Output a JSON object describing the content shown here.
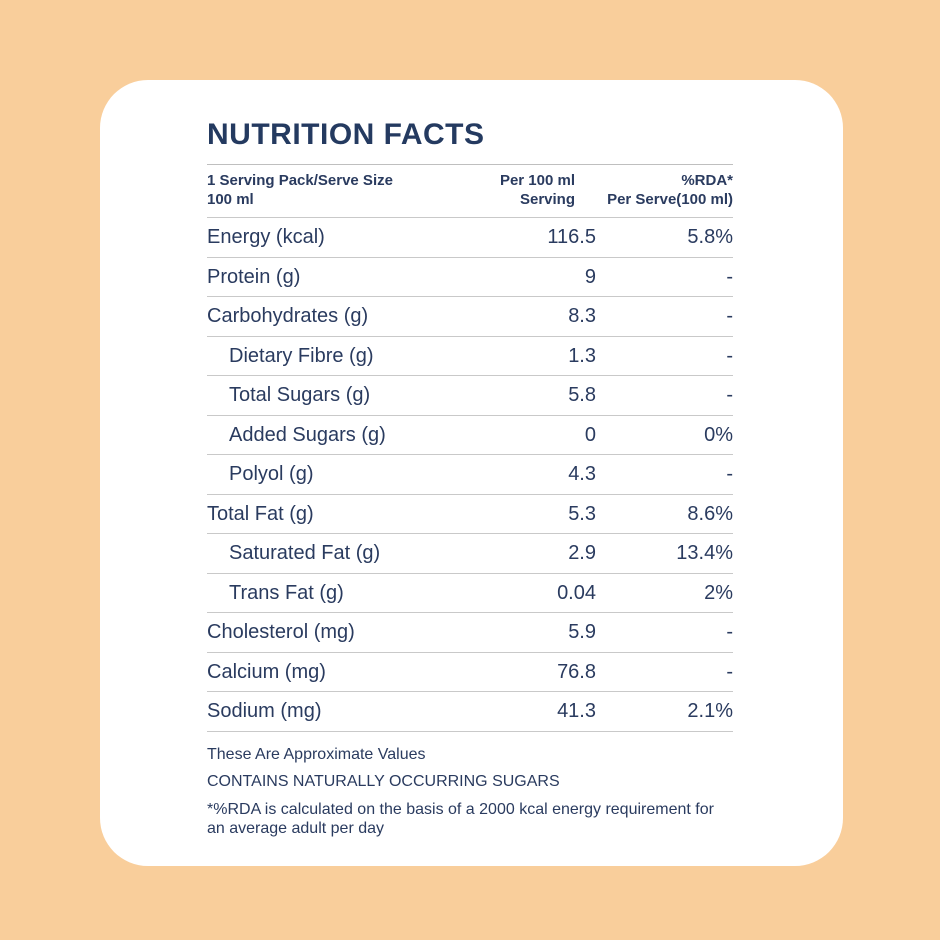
{
  "title": "NUTRITION FACTS",
  "colors": {
    "background": "#F9CE9B",
    "card": "#FFFFFF",
    "text": "#2A3B5F",
    "divider": "#C9C9C9"
  },
  "header": {
    "col_serving": "1 Serving Pack/Serve Size\n100 ml",
    "col_per_100ml": "Per 100 ml\nServing",
    "col_rda": "%RDA*\nPer Serve(100 ml)"
  },
  "table": {
    "rows": [
      {
        "label": "Energy (kcal)",
        "per_100ml": "116.5",
        "rda": "5.8%",
        "indent": false
      },
      {
        "label": "Protein (g)",
        "per_100ml": "9",
        "rda": "-",
        "indent": false
      },
      {
        "label": "Carbohydrates (g)",
        "per_100ml": "8.3",
        "rda": "-",
        "indent": false
      },
      {
        "label": "Dietary Fibre (g)",
        "per_100ml": "1.3",
        "rda": "-",
        "indent": true
      },
      {
        "label": "Total Sugars (g)",
        "per_100ml": "5.8",
        "rda": "-",
        "indent": true
      },
      {
        "label": "Added Sugars (g)",
        "per_100ml": "0",
        "rda": "0%",
        "indent": true
      },
      {
        "label": "Polyol (g)",
        "per_100ml": "4.3",
        "rda": "-",
        "indent": true
      },
      {
        "label": "Total Fat (g)",
        "per_100ml": "5.3",
        "rda": "8.6%",
        "indent": false
      },
      {
        "label": "Saturated Fat (g)",
        "per_100ml": "2.9",
        "rda": "13.4%",
        "indent": true
      },
      {
        "label": "Trans Fat (g)",
        "per_100ml": "0.04",
        "rda": "2%",
        "indent": true
      },
      {
        "label": "Cholesterol (mg)",
        "per_100ml": "5.9",
        "rda": "-",
        "indent": false
      },
      {
        "label": "Calcium (mg)",
        "per_100ml": "76.8",
        "rda": "-",
        "indent": false
      },
      {
        "label": "Sodium (mg)",
        "per_100ml": "41.3",
        "rda": "2.1%",
        "indent": false
      }
    ]
  },
  "footnotes": [
    "These Are Approximate Values",
    "CONTAINS NATURALLY OCCURRING SUGARS",
    "*%RDA is calculated on the basis of a 2000 kcal energy requirement for an average adult per day"
  ]
}
